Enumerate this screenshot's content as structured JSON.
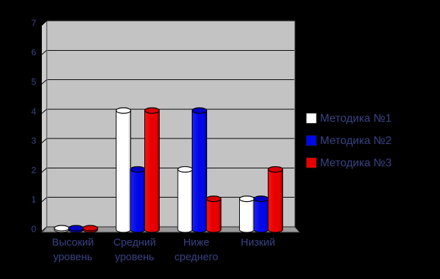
{
  "chart_data": {
    "type": "bar",
    "subtype": "3d-cylinder",
    "title": "",
    "xlabel": "",
    "ylabel": "",
    "categories": [
      "Высокий уровень",
      "Средний уровень",
      "Ниже среднего",
      "Низкий"
    ],
    "series": [
      {
        "name": "Методика №1",
        "values": [
          0,
          4,
          2,
          1
        ],
        "color": "#ffffff",
        "color_light": "#ffffff",
        "color_dark": "#a0a0a0",
        "color_top": "#fdfdfd"
      },
      {
        "name": "Методика №2",
        "values": [
          0,
          2,
          4,
          1
        ],
        "color": "#0008e8",
        "color_light": "#2020f5",
        "color_dark": "#000080",
        "color_top": "#0000c8"
      },
      {
        "name": "Методика №3",
        "values": [
          0,
          4,
          1,
          2
        ],
        "color": "#e80000",
        "color_light": "#f51515",
        "color_dark": "#850000",
        "color_top": "#d80000"
      }
    ],
    "ylim": [
      0,
      7
    ],
    "ytick_step": 1,
    "grid": true,
    "legend_position": "right",
    "background_color": "#000000",
    "wall_color": "#c3c3c3",
    "side_wall_color": "#cecece",
    "floor_color": "#9b9b9b",
    "gridline_color": "#000000",
    "text_color": "#3d478c"
  }
}
